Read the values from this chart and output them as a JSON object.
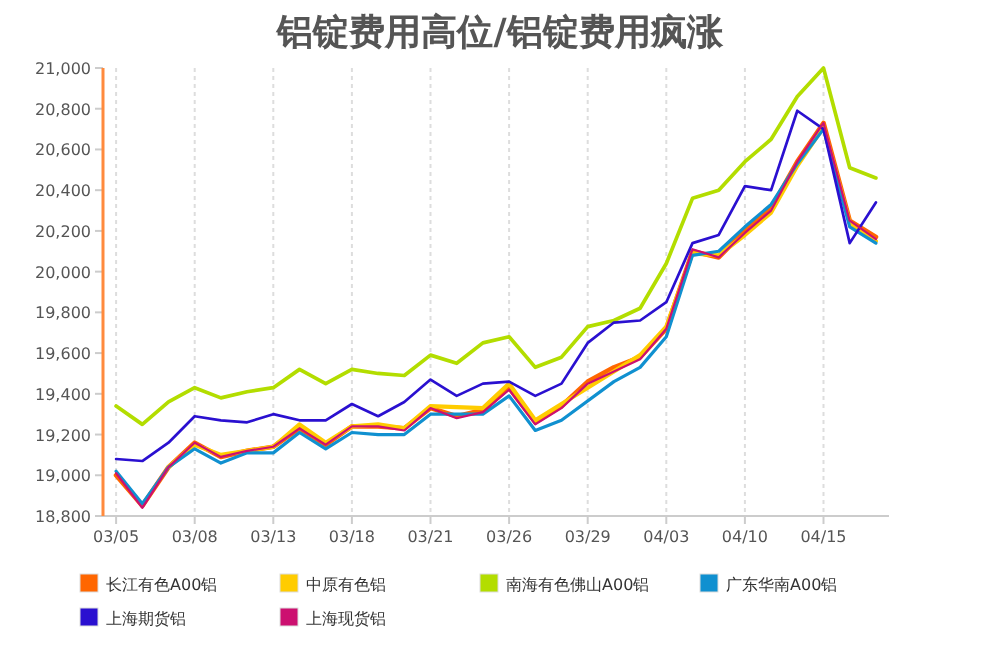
{
  "chart_data": {
    "type": "line",
    "title": "铝锭费用高位/铝锭费用疯涨",
    "categories": [
      "03/05",
      null,
      null,
      "03/08",
      null,
      null,
      "03/13",
      null,
      null,
      "03/18",
      null,
      null,
      "03/21",
      null,
      null,
      "03/26",
      null,
      null,
      "03/29",
      null,
      null,
      "04/03",
      null,
      null,
      "04/10",
      null,
      null,
      "04/15",
      null,
      null
    ],
    "ylim": [
      18800,
      21000
    ],
    "yticks": [
      {
        "value": 18800,
        "label": "18,800"
      },
      {
        "value": 19000,
        "label": "19,000"
      },
      {
        "value": 19200,
        "label": "19,200"
      },
      {
        "value": 19400,
        "label": "19,400"
      },
      {
        "value": 19600,
        "label": "19,600"
      },
      {
        "value": 19800,
        "label": "19,800"
      },
      {
        "value": 20000,
        "label": "20,000"
      },
      {
        "value": 20200,
        "label": "20,200"
      },
      {
        "value": 20400,
        "label": "20,400"
      },
      {
        "value": 20600,
        "label": "20,600"
      },
      {
        "value": 20800,
        "label": "20,800"
      },
      {
        "value": 21000,
        "label": "21,000"
      }
    ],
    "grid": "x",
    "legend": "bottom",
    "marker": "none",
    "line_style": "solid",
    "series": [
      {
        "name": "长江有色A00铝",
        "color": "#ff6600",
        "values": [
          19000,
          18850,
          19040,
          19160,
          19090,
          19120,
          19140,
          19230,
          19150,
          19240,
          19240,
          19230,
          19330,
          19290,
          19320,
          19430,
          19260,
          19340,
          19460,
          19530,
          19580,
          19720,
          20100,
          20070,
          20200,
          20310,
          20540,
          20730,
          20250,
          20170
        ]
      },
      {
        "name": "中原有色铝",
        "color": "#ffcc00",
        "values": [
          null,
          null,
          19040,
          19150,
          19100,
          19120,
          19140,
          19250,
          19160,
          19240,
          19250,
          19230,
          19340,
          null,
          19330,
          19450,
          19270,
          19350,
          null,
          null,
          19590,
          19730,
          20090,
          20080,
          20180,
          20290,
          20520,
          20710,
          20240,
          20150
        ]
      },
      {
        "name": "南海有色佛山A00铝",
        "color": "#b3dd00",
        "values": [
          19340,
          19250,
          19360,
          19430,
          19380,
          19410,
          19430,
          19520,
          19450,
          19520,
          19500,
          19490,
          19590,
          19550,
          19650,
          19680,
          19530,
          19580,
          19730,
          19760,
          19820,
          20040,
          20360,
          20400,
          20540,
          20650,
          20860,
          21000,
          20510,
          20460
        ]
      },
      {
        "name": "广东华南A00铝",
        "color": "#1090d0",
        "values": [
          19020,
          18860,
          19040,
          19130,
          19060,
          19110,
          19110,
          19210,
          19130,
          19210,
          19200,
          19200,
          19300,
          null,
          19300,
          19390,
          19220,
          19270,
          null,
          19460,
          19530,
          19680,
          20080,
          20100,
          20220,
          20330,
          20530,
          20700,
          20220,
          20140
        ]
      },
      {
        "name": "上海期货铝",
        "color": "#2a10d0",
        "values": [
          19080,
          19070,
          19160,
          19290,
          19270,
          19260,
          19300,
          19270,
          19270,
          19350,
          19290,
          19360,
          19470,
          19390,
          19450,
          19460,
          19390,
          19450,
          19650,
          19750,
          19760,
          19850,
          20140,
          20180,
          20420,
          20400,
          20790,
          20700,
          20140,
          20340
        ]
      },
      {
        "name": "上海现货铝",
        "color": "#cc1070",
        "values": [
          19010,
          18840,
          19040,
          19160,
          19090,
          19120,
          19140,
          19230,
          19150,
          19240,
          19240,
          19220,
          19330,
          19280,
          19310,
          19420,
          19250,
          19330,
          19450,
          19510,
          19570,
          19720,
          20110,
          20070,
          20190,
          20300,
          20540,
          20730,
          20250,
          20160
        ]
      }
    ]
  }
}
